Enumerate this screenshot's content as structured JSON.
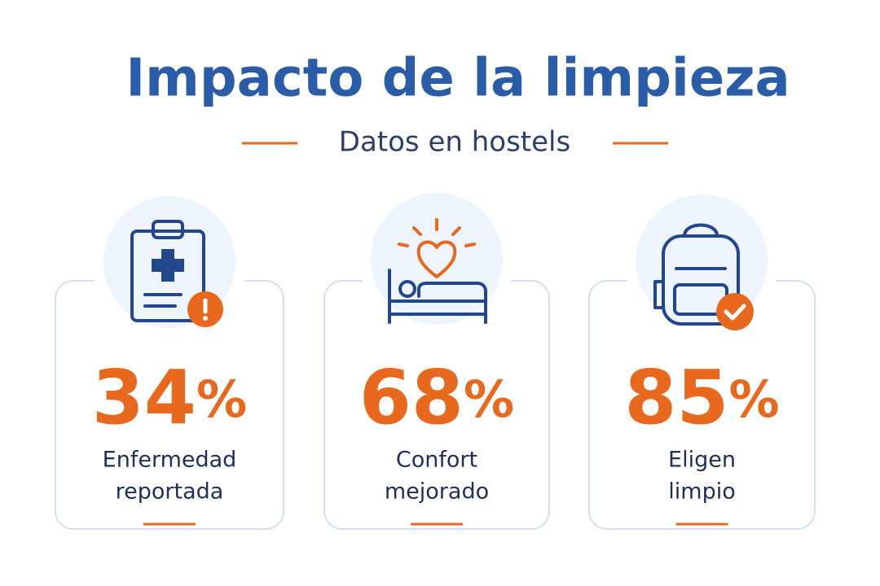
{
  "header": {
    "title": "Impacto de la limpieza",
    "subtitle": "Datos en hostels"
  },
  "cards": [
    {
      "value": "34",
      "unit": "%",
      "label": [
        "Enfermedad",
        "reportada"
      ]
    },
    {
      "value": "68",
      "unit": "%",
      "label": [
        "Confort",
        "mejorado"
      ]
    },
    {
      "value": "85",
      "unit": "%",
      "label": [
        "Eligen",
        "limpio"
      ]
    }
  ]
}
